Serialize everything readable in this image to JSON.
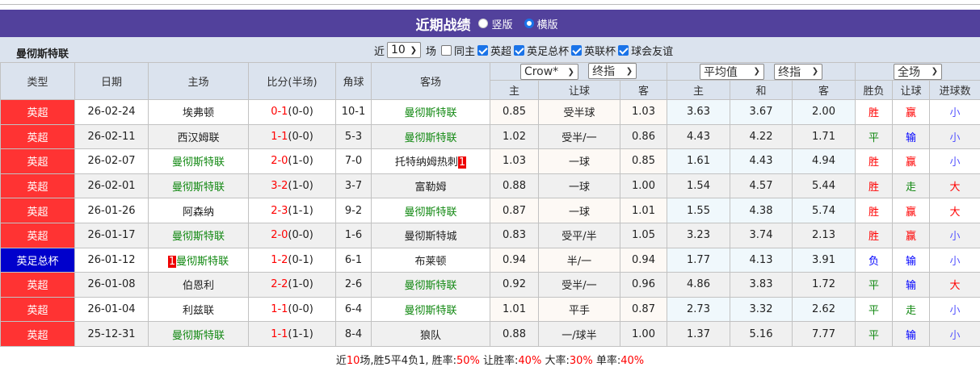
{
  "title": "近期战绩",
  "layout_options": [
    {
      "label": "竖版",
      "selected": false
    },
    {
      "label": "横版",
      "selected": true
    }
  ],
  "team": "曼彻斯特联",
  "filter": {
    "prefix": "近",
    "count": "10",
    "suffix": "场",
    "same_home": {
      "label": "同主",
      "checked": false
    },
    "competitions": [
      {
        "label": "英超",
        "checked": true
      },
      {
        "label": "英足总杯",
        "checked": true
      },
      {
        "label": "英联杯",
        "checked": true
      },
      {
        "label": "球会友谊",
        "checked": true
      }
    ]
  },
  "headers": {
    "type": "类型",
    "date": "日期",
    "home": "主场",
    "score": "比分(半场)",
    "corner": "角球",
    "away": "客场",
    "company_select": "Crow*",
    "handicap_select": "终指",
    "avg_select": "平均值",
    "odds_select": "终指",
    "period_select": "全场",
    "sub": [
      "主",
      "让球",
      "客",
      "主",
      "和",
      "客",
      "胜负",
      "让球",
      "进球数"
    ]
  },
  "colors": {
    "league_epl": "#ff3333",
    "league_fa": "#0000cc",
    "header_bg": "#52419c",
    "team_green": "#118811"
  },
  "rows": [
    {
      "type": "英超",
      "league": "epl",
      "date": "26-02-24",
      "home": "埃弗顿",
      "home_red": "",
      "score": "0-1",
      "half": "(0-0)",
      "corner": "10-1",
      "away": "曼彻斯特联",
      "away_red": "",
      "h_home": "0.85",
      "handicap": "受半球",
      "h_away": "1.03",
      "o_home": "3.63",
      "o_draw": "3.67",
      "o_away": "2.00",
      "wl": "胜",
      "hc": "赢",
      "goals": "小"
    },
    {
      "type": "英超",
      "league": "epl",
      "date": "26-02-11",
      "home": "西汉姆联",
      "home_red": "",
      "score": "1-1",
      "half": "(0-0)",
      "corner": "5-3",
      "away": "曼彻斯特联",
      "away_red": "",
      "h_home": "1.02",
      "handicap": "受半/一",
      "h_away": "0.86",
      "o_home": "4.43",
      "o_draw": "4.22",
      "o_away": "1.71",
      "wl": "平",
      "hc": "输",
      "goals": "小"
    },
    {
      "type": "英超",
      "league": "epl",
      "date": "26-02-07",
      "home": "曼彻斯特联",
      "home_red": "",
      "score": "2-0",
      "half": "(1-0)",
      "corner": "7-0",
      "away": "托特纳姆热刺",
      "away_red": "1",
      "h_home": "1.03",
      "handicap": "一球",
      "h_away": "0.85",
      "o_home": "1.61",
      "o_draw": "4.43",
      "o_away": "4.94",
      "wl": "胜",
      "hc": "赢",
      "goals": "小"
    },
    {
      "type": "英超",
      "league": "epl",
      "date": "26-02-01",
      "home": "曼彻斯特联",
      "home_red": "",
      "score": "3-2",
      "half": "(1-0)",
      "corner": "3-7",
      "away": "富勒姆",
      "away_red": "",
      "h_home": "0.88",
      "handicap": "一球",
      "h_away": "1.00",
      "o_home": "1.54",
      "o_draw": "4.57",
      "o_away": "5.44",
      "wl": "胜",
      "hc": "走",
      "goals": "大"
    },
    {
      "type": "英超",
      "league": "epl",
      "date": "26-01-26",
      "home": "阿森纳",
      "home_red": "",
      "score": "2-3",
      "half": "(1-1)",
      "corner": "9-2",
      "away": "曼彻斯特联",
      "away_red": "",
      "h_home": "0.87",
      "handicap": "一球",
      "h_away": "1.01",
      "o_home": "1.55",
      "o_draw": "4.38",
      "o_away": "5.74",
      "wl": "胜",
      "hc": "赢",
      "goals": "大"
    },
    {
      "type": "英超",
      "league": "epl",
      "date": "26-01-17",
      "home": "曼彻斯特联",
      "home_red": "",
      "score": "2-0",
      "half": "(0-0)",
      "corner": "1-6",
      "away": "曼彻斯特城",
      "away_red": "",
      "h_home": "0.83",
      "handicap": "受平/半",
      "h_away": "1.05",
      "o_home": "3.23",
      "o_draw": "3.74",
      "o_away": "2.13",
      "wl": "胜",
      "hc": "赢",
      "goals": "小"
    },
    {
      "type": "英足总杯",
      "league": "fa",
      "date": "26-01-12",
      "home": "曼彻斯特联",
      "home_red": "1",
      "score": "1-2",
      "half": "(0-1)",
      "corner": "6-1",
      "away": "布莱顿",
      "away_red": "",
      "h_home": "0.94",
      "handicap": "半/一",
      "h_away": "0.94",
      "o_home": "1.77",
      "o_draw": "4.13",
      "o_away": "3.91",
      "wl": "负",
      "hc": "输",
      "goals": "小"
    },
    {
      "type": "英超",
      "league": "epl",
      "date": "26-01-08",
      "home": "伯恩利",
      "home_red": "",
      "score": "2-2",
      "half": "(1-0)",
      "corner": "2-6",
      "away": "曼彻斯特联",
      "away_red": "",
      "h_home": "0.92",
      "handicap": "受半/一",
      "h_away": "0.96",
      "o_home": "4.86",
      "o_draw": "3.83",
      "o_away": "1.72",
      "wl": "平",
      "hc": "输",
      "goals": "大"
    },
    {
      "type": "英超",
      "league": "epl",
      "date": "26-01-04",
      "home": "利兹联",
      "home_red": "",
      "score": "1-1",
      "half": "(0-0)",
      "corner": "6-4",
      "away": "曼彻斯特联",
      "away_red": "",
      "h_home": "1.01",
      "handicap": "平手",
      "h_away": "0.87",
      "o_home": "2.73",
      "o_draw": "3.32",
      "o_away": "2.62",
      "wl": "平",
      "hc": "走",
      "goals": "小"
    },
    {
      "type": "英超",
      "league": "epl",
      "date": "25-12-31",
      "home": "曼彻斯特联",
      "home_red": "",
      "score": "1-1",
      "half": "(1-1)",
      "corner": "8-4",
      "away": "狼队",
      "away_red": "",
      "h_home": "0.88",
      "handicap": "一/球半",
      "h_away": "1.00",
      "o_home": "1.37",
      "o_draw": "5.16",
      "o_away": "7.77",
      "wl": "平",
      "hc": "输",
      "goals": "小"
    }
  ],
  "summary": {
    "p1": "近",
    "n": "10",
    "p2": "场,胜5平4负1, 胜率:",
    "win": "50%",
    "p3": " 让胜率:",
    "hwin": "40%",
    "p4": " 大率:",
    "big": "30%",
    "p5": " 单率:",
    "odd": "40%"
  }
}
